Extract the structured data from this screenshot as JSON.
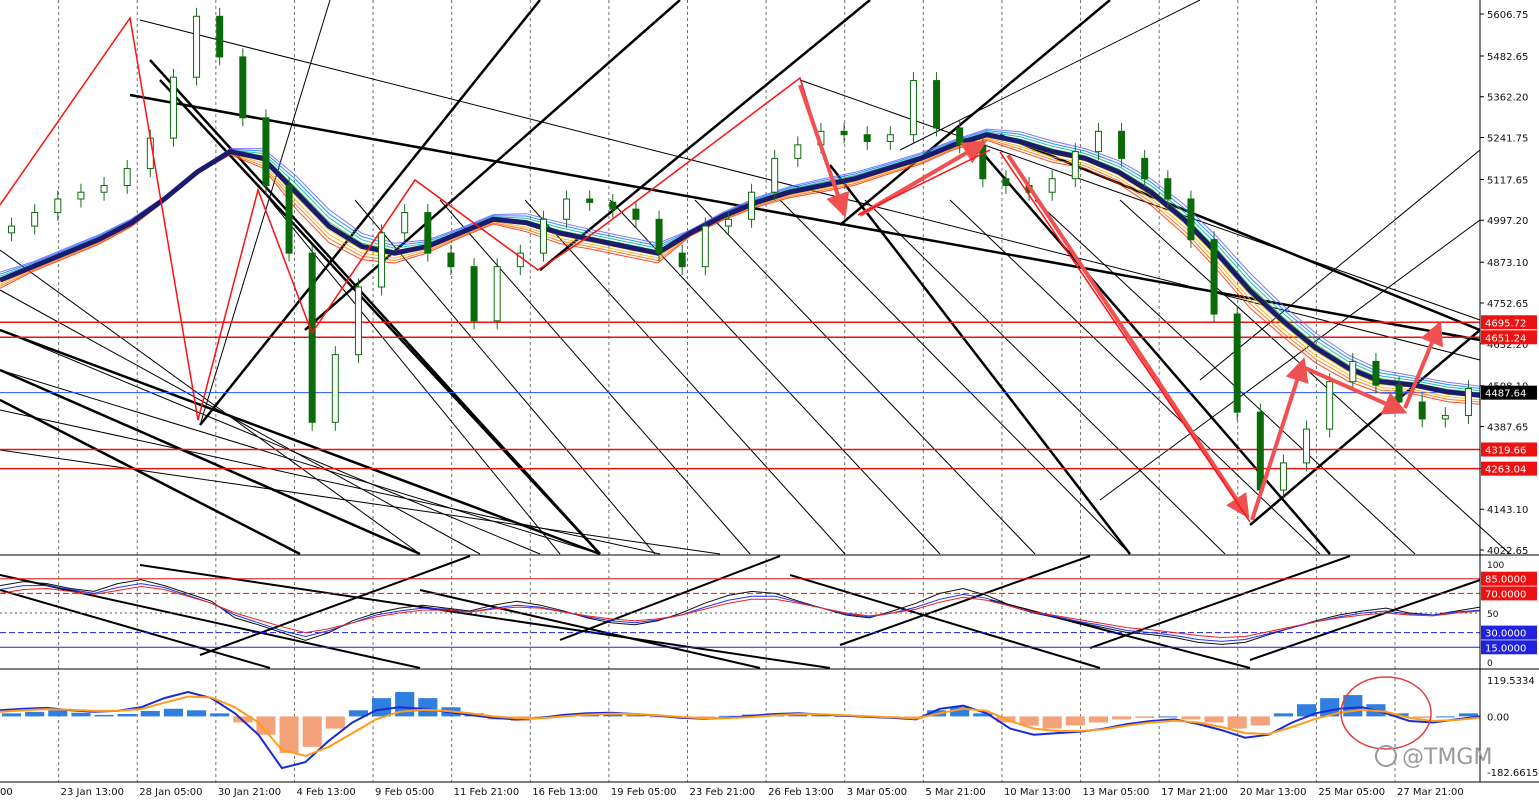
{
  "chart_data": {
    "type": "line",
    "title": "",
    "grid": "vertical-dashed",
    "x_labels": [
      "00",
      "23 Jan 13:00",
      "28 Jan 05:00",
      "30 Jan 21:00",
      "4 Feb 13:00",
      "9 Feb 05:00",
      "11 Feb 21:00",
      "16 Feb 13:00",
      "19 Feb 05:00",
      "23 Feb 21:00",
      "26 Feb 13:00",
      "3 Mar 05:00",
      "5 Mar 21:00",
      "10 Mar 13:00",
      "13 Mar 05:00",
      "17 Mar 21:00",
      "20 Mar 13:00",
      "25 Mar 05:00",
      "27 Mar 21:00"
    ],
    "price_panel": {
      "ylim": [
        4022.65,
        5606.75
      ],
      "ticks": [
        "5606.75",
        "5482.65",
        "5362.20",
        "5241.75",
        "5117.65",
        "4997.20",
        "4873.10",
        "4752.65",
        "4632.20",
        "4508.10",
        "4387.65",
        "4263.55",
        "4143.10",
        "4022.65"
      ],
      "candles_close": [
        4980,
        5020,
        5060,
        5080,
        5100,
        5150,
        5240,
        5420,
        5600,
        5480,
        5300,
        5100,
        4900,
        4400,
        4600,
        4800,
        4960,
        5020,
        4900,
        4860,
        4700,
        4860,
        4900,
        5000,
        5060,
        5050,
        5030,
        5000,
        4900,
        4860,
        4980,
        5000,
        5080,
        5180,
        5220,
        5260,
        5250,
        5230,
        5250,
        5410,
        5270,
        5220,
        5120,
        5100,
        5080,
        5120,
        5200,
        5260,
        5180,
        5120,
        5060,
        4940,
        4720,
        4430,
        4200,
        4280,
        4380,
        4520,
        4580,
        4510,
        4460,
        4410,
        4420,
        4500
      ],
      "ema_slow": [
        4820,
        4860,
        4900,
        4940,
        4990,
        5060,
        5140,
        5200,
        5180,
        5080,
        4980,
        4920,
        4900,
        4920,
        4960,
        5000,
        4990,
        4960,
        4940,
        4920,
        4900,
        4960,
        5010,
        5050,
        5080,
        5100,
        5120,
        5150,
        5180,
        5220,
        5250,
        5230,
        5200,
        5180,
        5140,
        5080,
        5000,
        4900,
        4790,
        4700,
        4620,
        4560,
        4520,
        4510,
        4490,
        4480
      ],
      "levels": [
        {
          "value": "4695.72",
          "color": "#ee1111"
        },
        {
          "value": "4651.24",
          "color": "#ee1111"
        },
        {
          "value": "4319.66",
          "color": "#ee1111"
        },
        {
          "value": "4263.04",
          "color": "#ee1111"
        }
      ],
      "current_price": {
        "value": "4487.64",
        "color": "#2255ff"
      }
    },
    "oscillator_panel": {
      "ylim": [
        0,
        100
      ],
      "ticks": [
        "100",
        "50",
        "0"
      ],
      "levels": [
        {
          "value": "85.0000",
          "color": "#ee1111"
        },
        {
          "value": "70.0000",
          "color": "#ee1111"
        },
        {
          "value": "30.0000",
          "color": "#2222dd"
        },
        {
          "value": "15.0000",
          "color": "#2222dd"
        }
      ],
      "series": [
        {
          "values": [
            78,
            82,
            80,
            75,
            72,
            80,
            84,
            78,
            70,
            62,
            45,
            38,
            30,
            22,
            30,
            42,
            50,
            55,
            58,
            55,
            52,
            58,
            62,
            58,
            52,
            45,
            40,
            38,
            42,
            50,
            60,
            68,
            72,
            70,
            62,
            55,
            48,
            45,
            52,
            60,
            70,
            75,
            68,
            58,
            50,
            45,
            40,
            35,
            30,
            28,
            25,
            20,
            18,
            20,
            28,
            35,
            42,
            48,
            52,
            55,
            50,
            48,
            52,
            56
          ]
        },
        {
          "values": [
            74,
            78,
            78,
            74,
            70,
            76,
            80,
            76,
            68,
            60,
            48,
            40,
            32,
            26,
            32,
            40,
            48,
            52,
            55,
            54,
            51,
            55,
            58,
            56,
            51,
            46,
            42,
            40,
            43,
            48,
            56,
            63,
            67,
            67,
            61,
            55,
            49,
            46,
            50,
            56,
            64,
            69,
            65,
            57,
            50,
            46,
            41,
            37,
            32,
            30,
            27,
            23,
            21,
            23,
            29,
            35,
            41,
            46,
            50,
            52,
            49,
            48,
            51,
            53
          ]
        },
        {
          "values": [
            70,
            74,
            75,
            72,
            69,
            73,
            77,
            74,
            67,
            60,
            50,
            43,
            36,
            30,
            34,
            40,
            46,
            50,
            53,
            53,
            51,
            54,
            56,
            55,
            51,
            47,
            44,
            42,
            44,
            48,
            54,
            60,
            64,
            64,
            60,
            55,
            50,
            47,
            50,
            54,
            61,
            66,
            63,
            57,
            51,
            47,
            43,
            39,
            35,
            33,
            30,
            27,
            25,
            26,
            31,
            36,
            41,
            45,
            48,
            50,
            48,
            47,
            50,
            52
          ]
        }
      ]
    },
    "macd_panel": {
      "ylim": [
        -182.6615,
        119.5334
      ],
      "ticks": [
        "119.5334",
        "0.00",
        "-182.6615"
      ],
      "histogram": [
        10,
        15,
        20,
        12,
        5,
        8,
        18,
        25,
        20,
        10,
        -20,
        -60,
        -120,
        -100,
        -40,
        20,
        60,
        80,
        60,
        30,
        10,
        -10,
        -15,
        -5,
        5,
        10,
        8,
        4,
        -2,
        -6,
        -4,
        2,
        6,
        10,
        8,
        4,
        2,
        0,
        -4,
        -8,
        20,
        30,
        10,
        -20,
        -30,
        -40,
        -30,
        -20,
        -10,
        -5,
        0,
        -10,
        -20,
        -40,
        -30,
        10,
        40,
        60,
        70,
        40,
        10,
        -5,
        0,
        10
      ],
      "macd": [
        20,
        25,
        28,
        20,
        15,
        18,
        30,
        60,
        80,
        60,
        10,
        -60,
        -170,
        -150,
        -80,
        -20,
        20,
        30,
        25,
        15,
        5,
        -5,
        -10,
        -5,
        5,
        10,
        12,
        8,
        2,
        -5,
        -8,
        -5,
        2,
        8,
        10,
        6,
        2,
        -2,
        -5,
        -10,
        25,
        35,
        10,
        -40,
        -60,
        -55,
        -50,
        -40,
        -25,
        -15,
        -10,
        -25,
        -45,
        -70,
        -60,
        -20,
        10,
        25,
        30,
        10,
        -15,
        -20,
        -10,
        0
      ],
      "signal": [
        15,
        20,
        24,
        22,
        18,
        18,
        24,
        45,
        65,
        62,
        30,
        -20,
        -110,
        -130,
        -100,
        -55,
        -10,
        15,
        22,
        18,
        10,
        0,
        -6,
        -6,
        0,
        6,
        9,
        8,
        4,
        -2,
        -6,
        -6,
        -2,
        4,
        8,
        7,
        4,
        0,
        -3,
        -7,
        10,
        25,
        18,
        -15,
        -40,
        -48,
        -48,
        -42,
        -30,
        -20,
        -14,
        -20,
        -35,
        -55,
        -58,
        -35,
        -8,
        12,
        22,
        15,
        -5,
        -15,
        -12,
        -4
      ]
    },
    "watermark": "@TMGM"
  }
}
